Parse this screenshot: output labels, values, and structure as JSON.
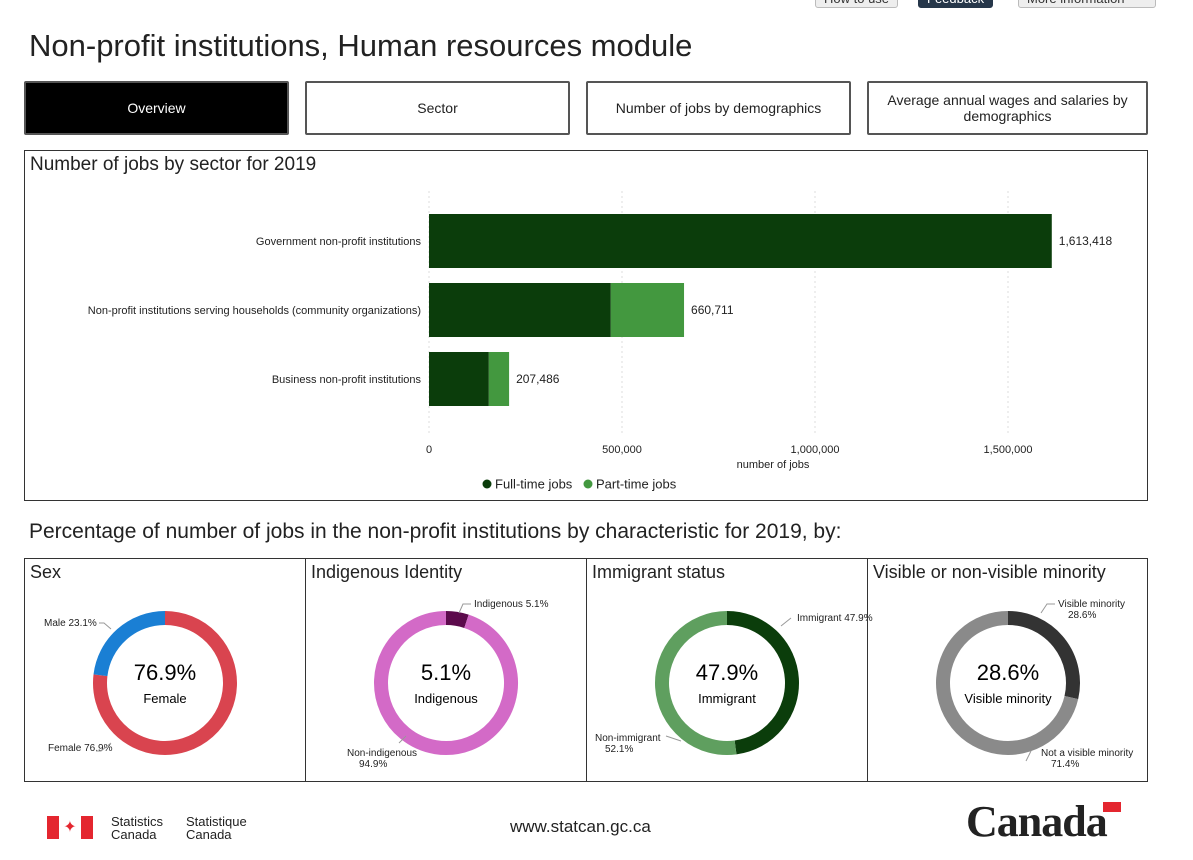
{
  "top_links": [
    "How to use",
    "Feedback",
    "More information"
  ],
  "title": "Non-profit institutions, Human resources module",
  "tabs": [
    "Overview",
    "Sector",
    "Number of jobs by demographics",
    "Average annual wages and salaries by demographics"
  ],
  "bar_chart_title": "Number of jobs by sector for 2019",
  "chart_data": {
    "type": "bar",
    "orientation": "horizontal",
    "stacked": true,
    "title": "Number of jobs by sector for 2019",
    "categories": [
      "Government non-profit institutions",
      "Non-profit institutions serving households (community organizations)",
      "Business non-profit institutions"
    ],
    "series": [
      {
        "name": "Full-time jobs",
        "color": "#0b3d0b",
        "values": [
          1613418,
          471000,
          155000
        ]
      },
      {
        "name": "Part-time jobs",
        "color": "#43983f",
        "values": [
          0,
          189711,
          52486
        ]
      }
    ],
    "totals": [
      "1,613,418",
      "660,711",
      "207,486"
    ],
    "xlabel": "number of jobs",
    "xlim": [
      0,
      1700000
    ],
    "xticks": [
      0,
      500000,
      1000000,
      1500000
    ],
    "xtick_labels": [
      "0",
      "500,000",
      "1,000,000",
      "1,500,000"
    ],
    "grid": "vertical dotted",
    "legend": "bottom"
  },
  "donut_section_title": "Percentage of number of jobs in the non-profit institutions by characteristic for 2019, by:",
  "donuts": [
    {
      "title": "Sex",
      "center_pct": "76.9%",
      "center_label": "Female",
      "segments": [
        {
          "label": "Female 76.9%",
          "value": 76.9,
          "color": "#d9444f"
        },
        {
          "label": "Male 23.1%",
          "value": 23.1,
          "color": "#1a7fd4"
        }
      ]
    },
    {
      "title": "Indigenous Identity",
      "center_pct": "5.1%",
      "center_label": "Indigenous",
      "segments": [
        {
          "label": "Indigenous 5.1%",
          "value": 5.1,
          "color": "#5c0a4c"
        },
        {
          "label": "Non-indigenous 94.9%",
          "value": 94.9,
          "color": "#d36ac7"
        }
      ]
    },
    {
      "title": "Immigrant status",
      "center_pct": "47.9%",
      "center_label": "Immigrant",
      "segments": [
        {
          "label": "Immigrant 47.9%",
          "value": 47.9,
          "color": "#0b3d0b"
        },
        {
          "label": "Non-immigrant 52.1%",
          "value": 52.1,
          "color": "#5f9f5f"
        }
      ]
    },
    {
      "title": "Visible or non-visible minority",
      "center_pct": "28.6%",
      "center_label": "Visible minority",
      "segments": [
        {
          "label": "Visible minority 28.6%",
          "value": 28.6,
          "color": "#333333"
        },
        {
          "label": "Not a visible minority 71.4%",
          "value": 71.4,
          "color": "#8a8a8a"
        }
      ]
    }
  ],
  "footer": {
    "stats_en": "Statistics Canada",
    "stats_fr": "Statistique Canada",
    "url": "www.statcan.gc.ca",
    "wordmark": "Canada"
  }
}
